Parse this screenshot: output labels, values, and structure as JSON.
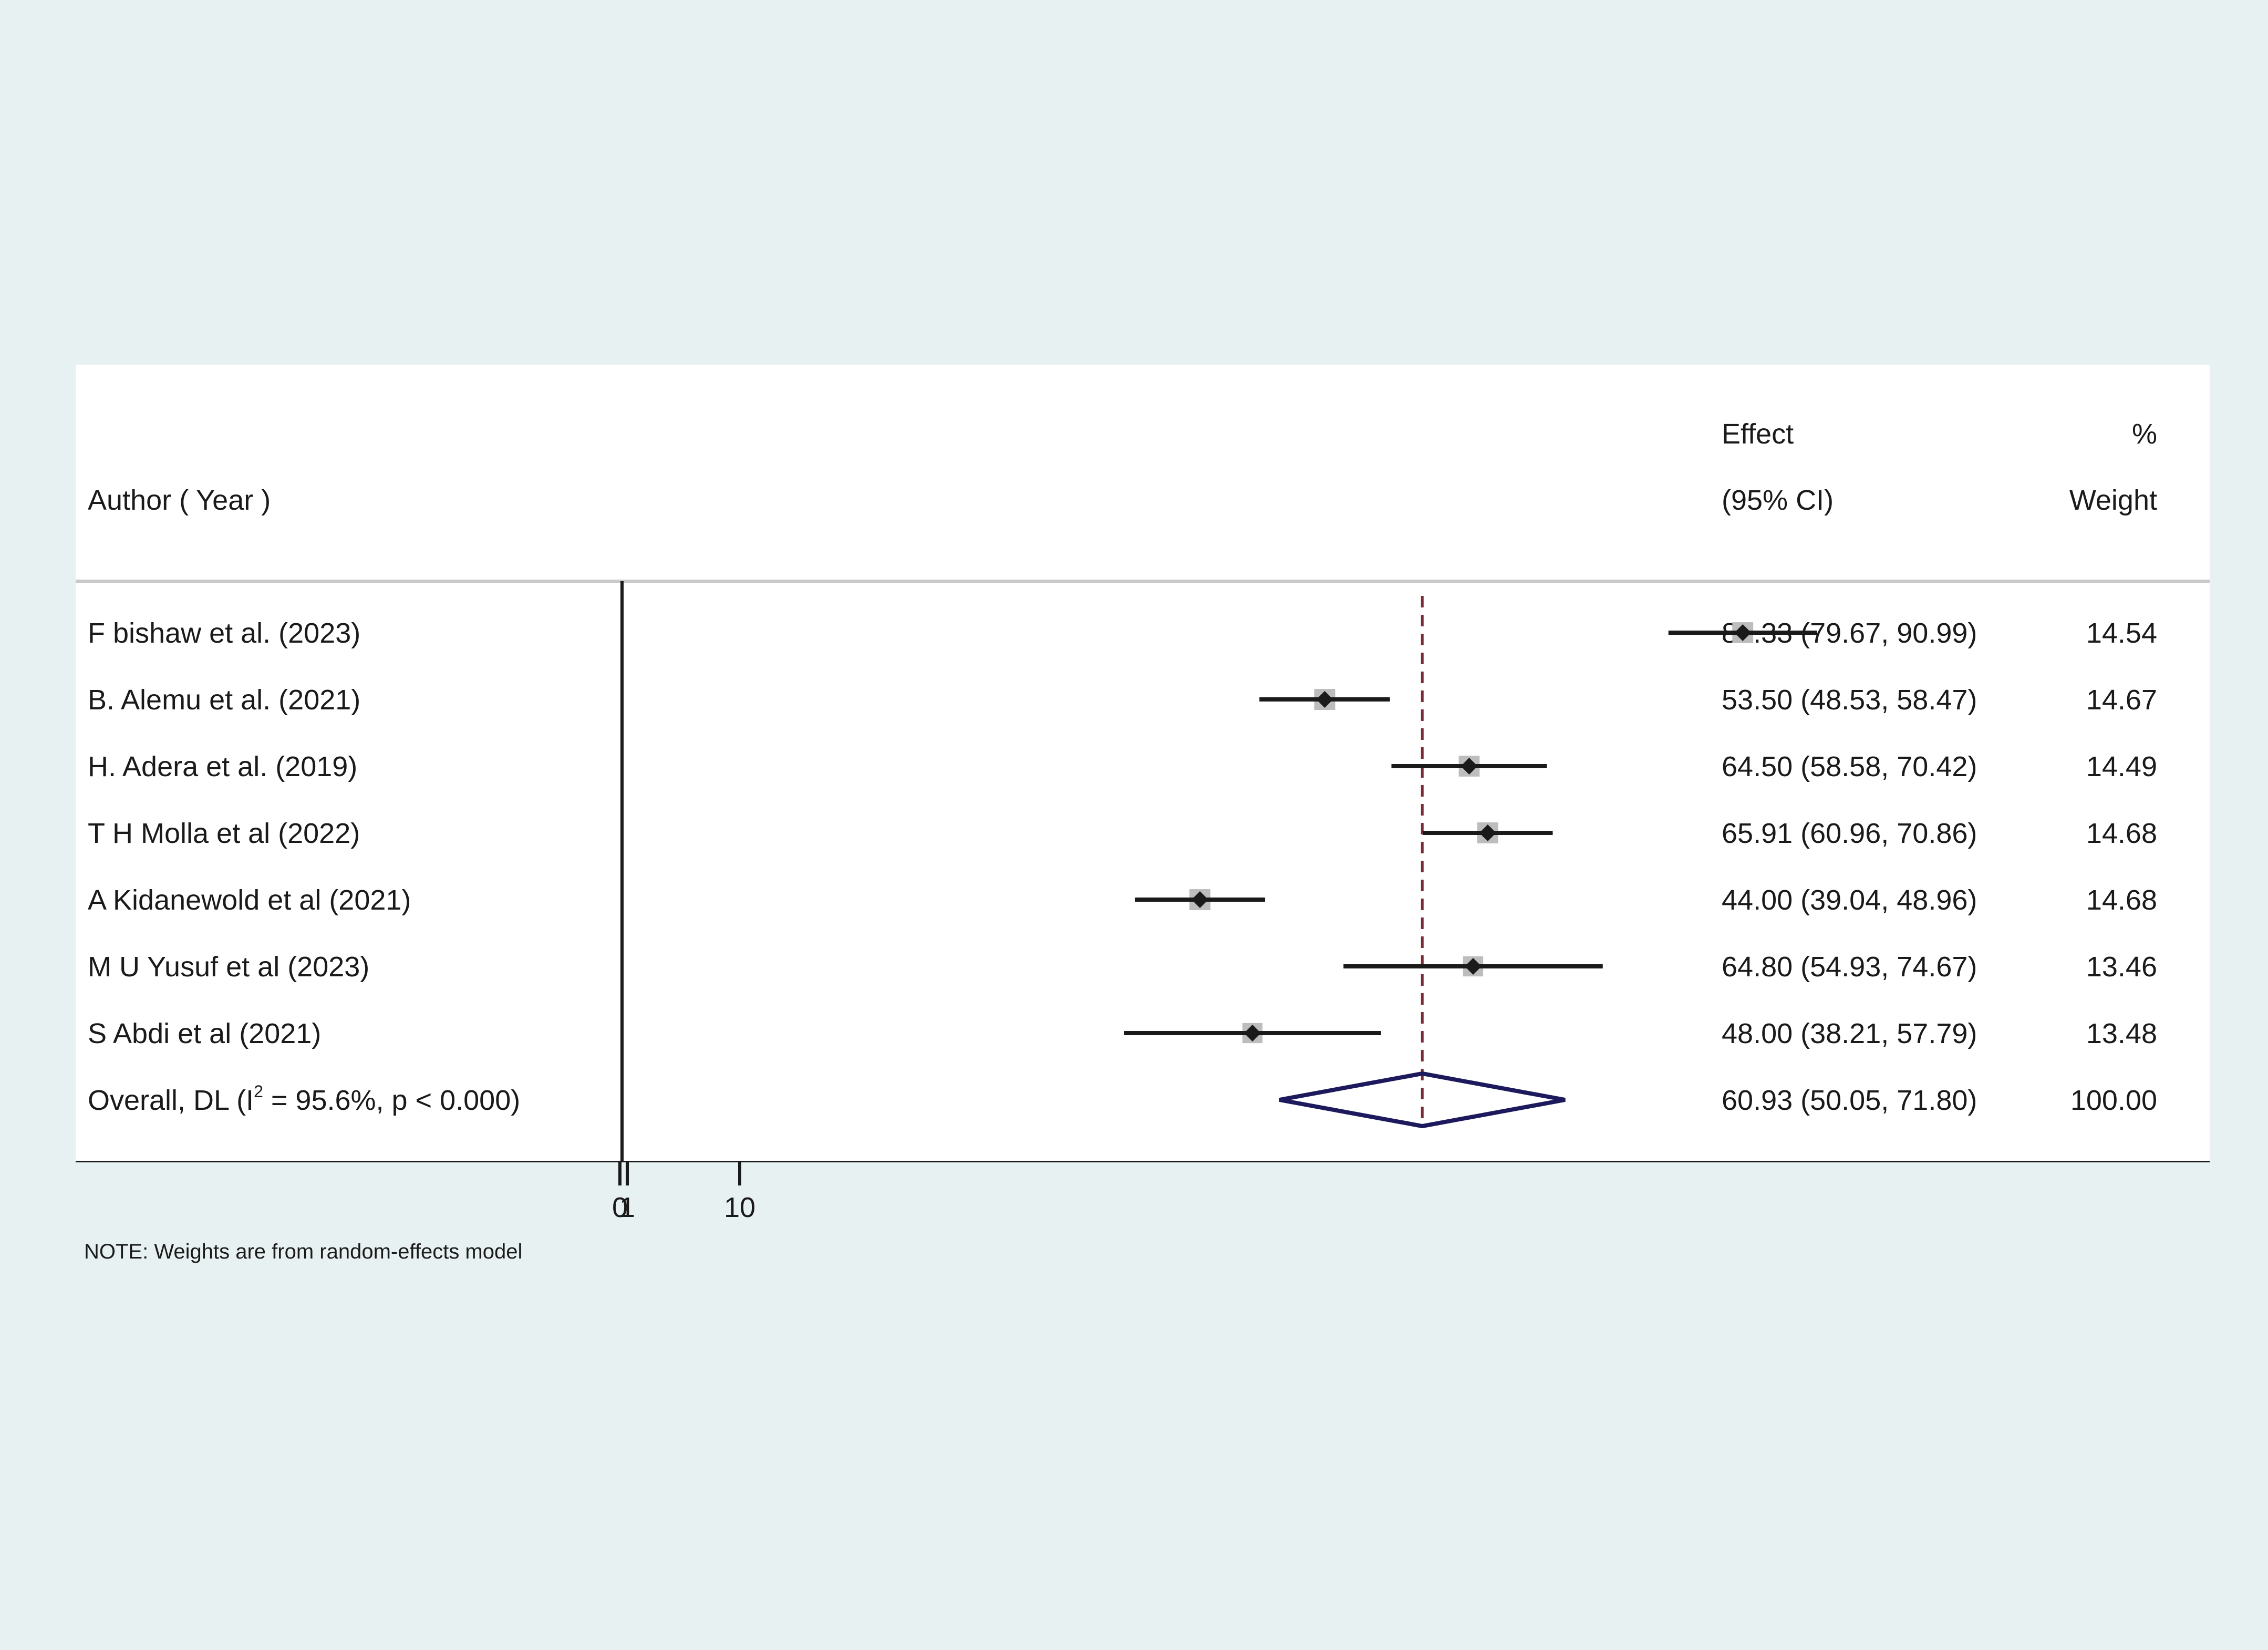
{
  "chart_data": {
    "type": "forest",
    "headers": {
      "study": "Author ( Year )",
      "effect_line1": "Effect",
      "effect_line2": "(95% CI)",
      "weight_line1": "%",
      "weight_line2": "Weight"
    },
    "studies": [
      {
        "label": "F bishaw et al. (2023)",
        "effect": 85.33,
        "ci": [
          79.67,
          90.99
        ],
        "weight": 14.54,
        "effect_text": "85.33 (79.67, 90.99)",
        "weight_text": "14.54"
      },
      {
        "label": "B. Alemu et al. (2021)",
        "effect": 53.5,
        "ci": [
          48.53,
          58.47
        ],
        "weight": 14.67,
        "effect_text": "53.50 (48.53, 58.47)",
        "weight_text": "14.67"
      },
      {
        "label": "H. Adera et al. (2019)",
        "effect": 64.5,
        "ci": [
          58.58,
          70.42
        ],
        "weight": 14.49,
        "effect_text": "64.50 (58.58, 70.42)",
        "weight_text": "14.49"
      },
      {
        "label": "T H Molla et al (2022)",
        "effect": 65.91,
        "ci": [
          60.96,
          70.86
        ],
        "weight": 14.68,
        "effect_text": "65.91 (60.96, 70.86)",
        "weight_text": "14.68"
      },
      {
        "label": "A Kidanewold et al (2021)",
        "effect": 44.0,
        "ci": [
          39.04,
          48.96
        ],
        "weight": 14.68,
        "effect_text": "44.00 (39.04, 48.96)",
        "weight_text": "14.68"
      },
      {
        "label": "M U Yusuf et al (2023)",
        "effect": 64.8,
        "ci": [
          54.93,
          74.67
        ],
        "weight": 13.46,
        "effect_text": "64.80 (54.93, 74.67)",
        "weight_text": "13.46"
      },
      {
        "label": "S Abdi et al (2021)",
        "effect": 48.0,
        "ci": [
          38.21,
          57.79
        ],
        "weight": 13.48,
        "effect_text": "48.00 (38.21, 57.79)",
        "weight_text": "13.48"
      }
    ],
    "overall": {
      "label_prefix": "Overall, DL (I",
      "label_sup": "2",
      "label_suffix": " = 95.6%, p < 0.000)",
      "effect": 60.93,
      "ci": [
        50.05,
        71.8
      ],
      "weight": 100.0,
      "effect_text": "60.93 (50.05, 71.80)",
      "weight_text": "100.00"
    },
    "x_ticks": [
      0,
      1,
      10
    ],
    "x_tick_labels": [
      "0",
      "1",
      "10"
    ],
    "xlim": [
      0,
      98
    ],
    "null_line": 0,
    "note": "NOTE: Weights are from random-effects model",
    "colors": {
      "ci_line": "#1a1a1a",
      "marker": "#1a1a1a",
      "weight_box": "#bdbdbd",
      "overall_diamond": "#1c1a5c",
      "overall_line": "#7a2a35",
      "background": "#e8f1f2"
    }
  }
}
